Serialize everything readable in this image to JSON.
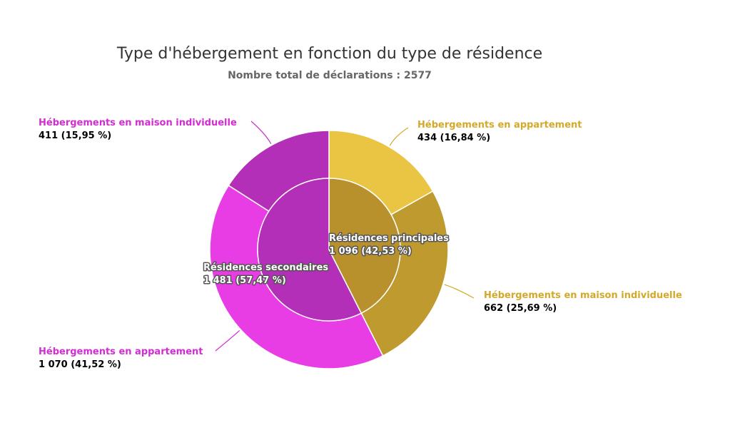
{
  "chart_data": {
    "type": "pie",
    "title": "Type d'hébergement en fonction du type de résidence",
    "subtitle": "Nombre total de déclarations : 2577",
    "inner": [
      {
        "name": "Résidences principales",
        "value": 1096,
        "value_label": "1 096 (42,53 %)",
        "color": "#B8912C"
      },
      {
        "name": "Résidences secondaires",
        "value": 1481,
        "value_label": "1 481 (57,47 %)",
        "color": "#B42FB8"
      }
    ],
    "outer": [
      {
        "name": "Hébergements en appartement",
        "value": 434,
        "value_label": "434 (16,84 %)",
        "color": "#EAC443",
        "parent": "Résidences principales"
      },
      {
        "name": "Hébergements en maison individuelle",
        "value": 662,
        "value_label": "662 (25,69 %)",
        "color": "#BE9A2F",
        "parent": "Résidences principales"
      },
      {
        "name": "Hébergements en appartement",
        "value": 1070,
        "value_label": "1 070 (41,52 %)",
        "color": "#E83DE4",
        "parent": "Résidences secondaires"
      },
      {
        "name": "Hébergements en maison individuelle",
        "value": 411,
        "value_label": "411 (15,95 %)",
        "color": "#B42FB8",
        "parent": "Résidences secondaires"
      }
    ],
    "label_colors": {
      "principales": "#D4A92A",
      "secondaires": "#D22CD2"
    }
  }
}
